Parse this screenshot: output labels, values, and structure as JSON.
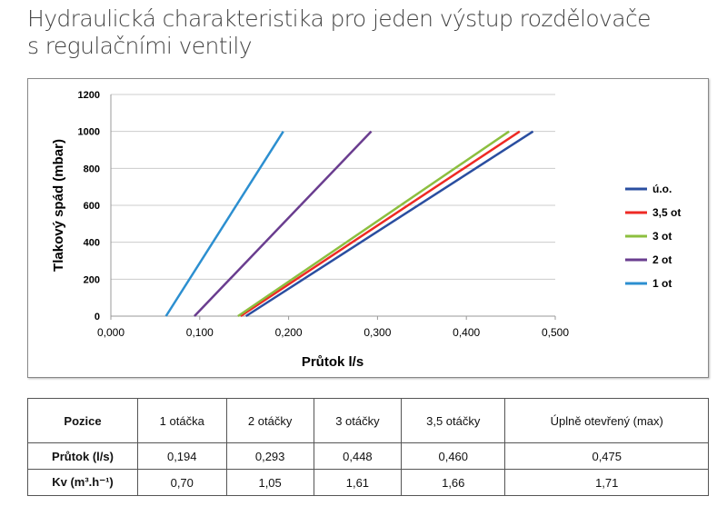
{
  "title": [
    "Hydraulická charakteristika pro jeden výstup rozdělovače",
    "s regulačními ventily"
  ],
  "chart_data": {
    "type": "line",
    "xlabel": "Průtok l/s",
    "ylabel": "Tlakový spád (mbar)",
    "xlim": [
      0,
      0.5
    ],
    "ylim": [
      0,
      1200
    ],
    "xticks": [
      "0,000",
      "0,100",
      "0,200",
      "0,300",
      "0,400",
      "0,500"
    ],
    "yticks": [
      "0",
      "200",
      "400",
      "600",
      "800",
      "1000",
      "1200"
    ],
    "grid": "horizontal",
    "legend": "right",
    "series": [
      {
        "name": "ú.o.",
        "color": "#2a4ea0",
        "x": [
          0.152,
          0.475
        ],
        "y": [
          0,
          1000
        ]
      },
      {
        "name": "3,5 ot",
        "color": "#ee2a24",
        "x": [
          0.146,
          0.46
        ],
        "y": [
          0,
          1000
        ]
      },
      {
        "name": "3 ot",
        "color": "#8cbf3f",
        "x": [
          0.143,
          0.448
        ],
        "y": [
          0,
          1000
        ]
      },
      {
        "name": "2 ot",
        "color": "#6a3d8f",
        "x": [
          0.094,
          0.293
        ],
        "y": [
          0,
          1000
        ]
      },
      {
        "name": "1 ot",
        "color": "#2c8fd0",
        "x": [
          0.062,
          0.194
        ],
        "y": [
          0,
          1000
        ]
      }
    ]
  },
  "table": {
    "header": [
      "Pozice",
      "1 otáčka",
      "2 otáčky",
      "3 otáčky",
      "3,5 otáčky",
      "Úplně otevřený (max)"
    ],
    "rows": [
      [
        "Průtok (l/s)",
        "0,194",
        "0,293",
        "0,448",
        "0,460",
        "0,475"
      ],
      [
        "Kv (m³.h⁻¹)",
        "0,70",
        "1,05",
        "1,61",
        "1,66",
        "1,71"
      ]
    ]
  }
}
